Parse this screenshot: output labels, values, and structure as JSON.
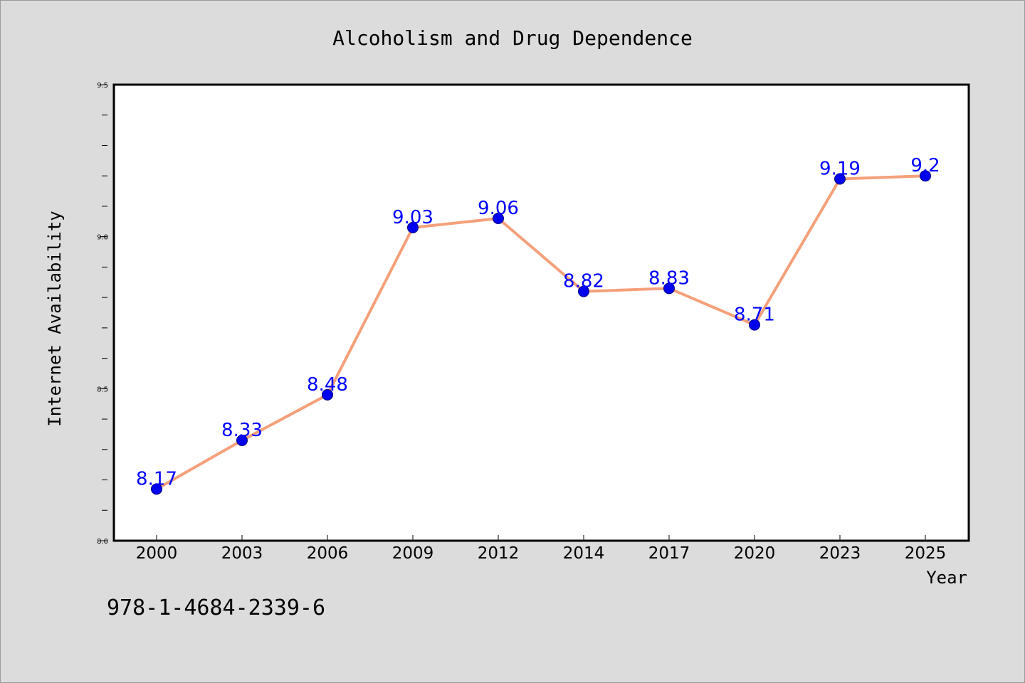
{
  "chart_data": {
    "type": "line",
    "title": "Alcoholism and Drug Dependence",
    "xlabel": "Year",
    "ylabel": "Internet Availability",
    "categories": [
      "2000",
      "2003",
      "2006",
      "2009",
      "2012",
      "2014",
      "2017",
      "2020",
      "2023",
      "2025"
    ],
    "series": [
      {
        "values": [
          8.17,
          8.33,
          8.48,
          9.03,
          9.06,
          8.82,
          8.83,
          8.71,
          9.19,
          9.2
        ],
        "labels": [
          "8.17",
          "8.33",
          "8.48",
          "9.03",
          "9.06",
          "8.82",
          "8.83",
          "8.71",
          "9.19",
          "9.2"
        ]
      }
    ],
    "ylim": [
      8.0,
      9.5
    ],
    "yticks": [
      "8.0",
      "8.5",
      "9.0",
      "9.5"
    ],
    "grid": false,
    "legend": "none",
    "colors": {
      "line": "#f4a07a",
      "marker": "#0000ee",
      "marker_edge": "#00007a",
      "data_label": "#0000ff",
      "plot_background": "#ffffff",
      "page_background": "#dcdcdc"
    }
  },
  "footnote": "978-1-4684-2339-6"
}
